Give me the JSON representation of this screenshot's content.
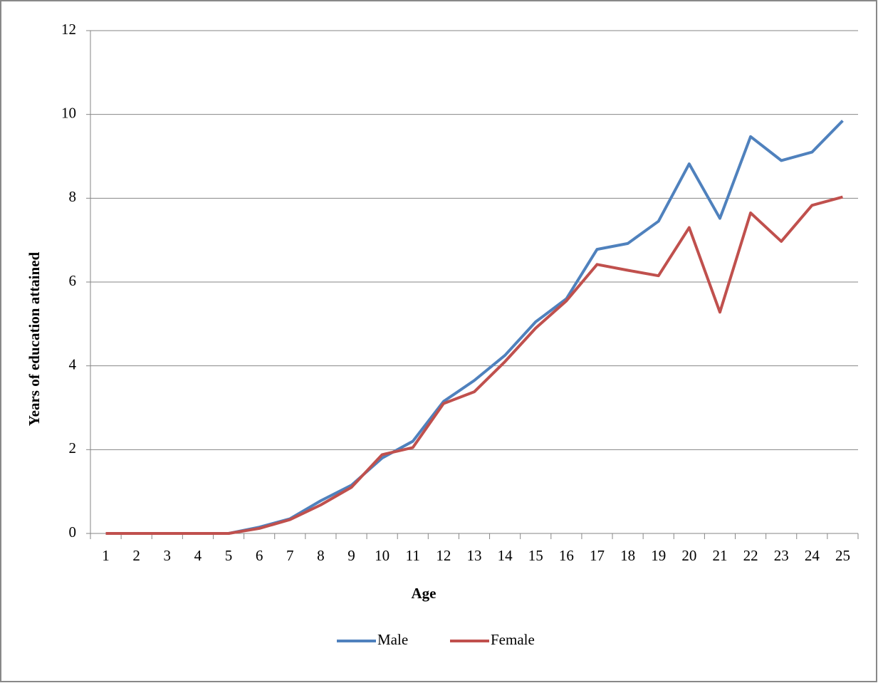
{
  "chart_data": {
    "type": "line",
    "x_label": "Age",
    "y_label": "Years of education attained",
    "categories": [
      "1",
      "2",
      "3",
      "4",
      "5",
      "6",
      "7",
      "8",
      "9",
      "10",
      "11",
      "12",
      "13",
      "14",
      "15",
      "16",
      "17",
      "18",
      "19",
      "20",
      "21",
      "22",
      "23",
      "24",
      "25"
    ],
    "series": [
      {
        "name": "Male",
        "color": "#4f81bd",
        "values": [
          0,
          0,
          0,
          0,
          0,
          0.15,
          0.35,
          0.78,
          1.15,
          1.8,
          2.2,
          3.15,
          3.65,
          4.25,
          5.05,
          5.6,
          6.78,
          6.92,
          7.45,
          8.82,
          7.52,
          9.47,
          8.9,
          9.1,
          9.85
        ]
      },
      {
        "name": "Female",
        "color": "#c0504d",
        "values": [
          0,
          0,
          0,
          0,
          0,
          0.12,
          0.33,
          0.68,
          1.1,
          1.88,
          2.05,
          3.1,
          3.38,
          4.1,
          4.9,
          5.55,
          6.42,
          6.28,
          6.15,
          7.3,
          5.28,
          7.65,
          6.97,
          7.83,
          8.03
        ]
      }
    ],
    "ylim": [
      0,
      12
    ],
    "yticks": [
      0,
      2,
      4,
      6,
      8,
      10,
      12
    ],
    "grid": true,
    "legend": "bottom"
  }
}
